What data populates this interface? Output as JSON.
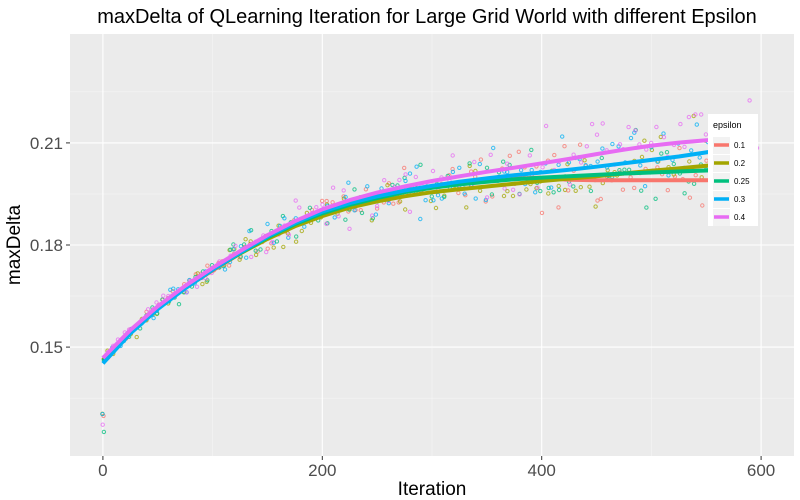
{
  "chart_data": {
    "type": "scatter",
    "title": "maxDelta of QLearning Iteration for Large Grid World with different Epsilon",
    "xlabel": "Iteration",
    "ylabel": "maxDelta",
    "xlim": [
      -30,
      630
    ],
    "ylim": [
      0.118,
      0.242
    ],
    "x_ticks": [
      0,
      200,
      400,
      600
    ],
    "x_tick_labels": [
      "0",
      "200",
      "400",
      "600"
    ],
    "y_ticks": [
      0.15,
      0.18,
      0.21
    ],
    "y_tick_labels": [
      "0.15",
      "0.18",
      "0.21"
    ],
    "x_minor_ticks": [
      100,
      300,
      500
    ],
    "y_minor_ticks": [
      0.135,
      0.165,
      0.195,
      0.225
    ],
    "grid": true,
    "legend": {
      "title": "epsilon",
      "position": "right"
    },
    "smooth_x": [
      0,
      25,
      50,
      75,
      100,
      125,
      150,
      175,
      200,
      225,
      250,
      275,
      300,
      325,
      350,
      375,
      400,
      425,
      450,
      475,
      500,
      525,
      550,
      575,
      595
    ],
    "series": [
      {
        "name": "0.1",
        "color": "#F8766D",
        "smooth": [
          0.146,
          0.1545,
          0.1615,
          0.1675,
          0.1725,
          0.1775,
          0.182,
          0.186,
          0.1895,
          0.192,
          0.194,
          0.1958,
          0.1972,
          0.1983,
          0.199,
          0.1995,
          0.1998,
          0.1992,
          0.199,
          0.199,
          0.199,
          0.199,
          0.199,
          0.1992,
          0.1995
        ]
      },
      {
        "name": "0.2",
        "color": "#A3A500",
        "smooth": [
          0.1462,
          0.1545,
          0.1615,
          0.1675,
          0.1728,
          0.1775,
          0.1818,
          0.1855,
          0.1885,
          0.191,
          0.1928,
          0.1943,
          0.1955,
          0.1964,
          0.1972,
          0.198,
          0.1988,
          0.1995,
          0.2002,
          0.201,
          0.2018,
          0.2025,
          0.2033,
          0.204,
          0.2045
        ]
      },
      {
        "name": "0.25",
        "color": "#00BF7D",
        "smooth": [
          0.1458,
          0.1543,
          0.1613,
          0.1673,
          0.1727,
          0.1776,
          0.1822,
          0.1861,
          0.1893,
          0.1918,
          0.1938,
          0.1955,
          0.1968,
          0.1978,
          0.1986,
          0.1993,
          0.1998,
          0.2002,
          0.2006,
          0.201,
          0.2013,
          0.2016,
          0.2019,
          0.2021,
          0.2022
        ]
      },
      {
        "name": "0.3",
        "color": "#00B0F6",
        "smooth": [
          0.1452,
          0.154,
          0.1612,
          0.1673,
          0.1728,
          0.1778,
          0.1825,
          0.1865,
          0.1898,
          0.1923,
          0.1943,
          0.196,
          0.1974,
          0.1986,
          0.1996,
          0.2005,
          0.2013,
          0.2021,
          0.203,
          0.204,
          0.205,
          0.206,
          0.2072,
          0.2085,
          0.2092
        ]
      },
      {
        "name": "0.4",
        "color": "#E76BF3",
        "smooth": [
          0.1468,
          0.155,
          0.162,
          0.168,
          0.1733,
          0.1782,
          0.1829,
          0.187,
          0.1905,
          0.1932,
          0.1954,
          0.1972,
          0.1988,
          0.2002,
          0.2015,
          0.2027,
          0.204,
          0.2053,
          0.2067,
          0.208,
          0.2092,
          0.2101,
          0.2108,
          0.2112,
          0.2115
        ]
      }
    ]
  }
}
